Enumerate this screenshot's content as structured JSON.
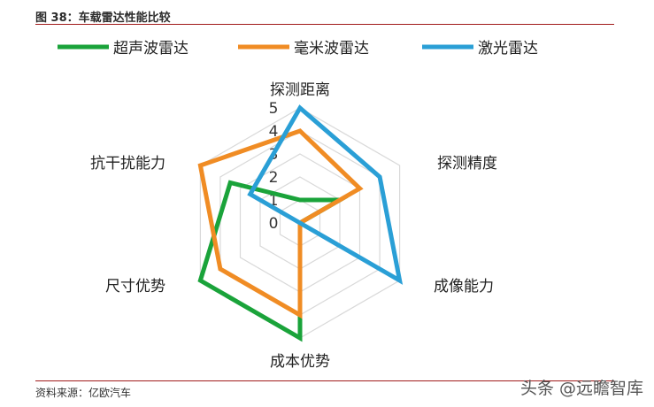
{
  "figure": {
    "title": "图 38：车载雷达性能比较",
    "source": "资料来源：亿欧汽车",
    "watermark": "头条 @远瞻智库"
  },
  "chart_data": {
    "type": "radar",
    "axes": [
      "探测距离",
      "探测精度",
      "成像能力",
      "成本优势",
      "尺寸优势",
      "抗干扰能力"
    ],
    "ticks": [
      "0",
      "1",
      "2",
      "3",
      "4",
      "5"
    ],
    "range": [
      0,
      5
    ],
    "grid": true,
    "legend_position": "top",
    "series": [
      {
        "name": "超声波雷达",
        "color": "#1aa33a",
        "values": [
          1,
          2,
          0,
          5,
          5,
          3.5
        ]
      },
      {
        "name": "毫米波雷达",
        "color": "#f08c24",
        "values": [
          4,
          3,
          0,
          4,
          4,
          5
        ]
      },
      {
        "name": "激光雷达",
        "color": "#2a9fd6",
        "values": [
          5,
          4,
          5,
          0,
          0,
          2.5
        ]
      }
    ]
  }
}
